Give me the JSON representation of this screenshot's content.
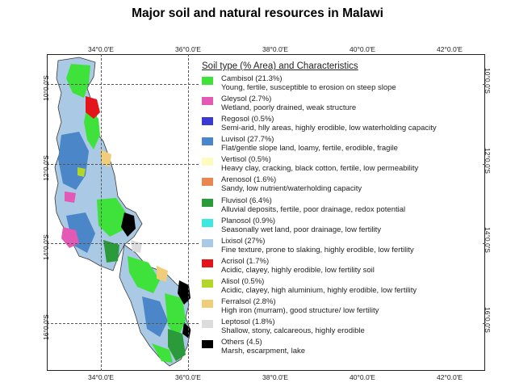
{
  "title": "Major soil and natural resources in Malawi",
  "coords": {
    "longitudes": [
      "34°0.0'E",
      "36°0.0'E",
      "38°0.0'E",
      "40°0.0'E",
      "42°0.0'E"
    ],
    "latitudes": [
      "10°0.0'S",
      "12°0.0'S",
      "14°0.0'S",
      "16°0.0'S"
    ]
  },
  "legend": {
    "title": "Soil type  (% Area) and Characteristics",
    "items": [
      {
        "name": "Cambisol (21.3%)",
        "desc": "Young, fertile, susceptible to erosion on steep slope",
        "color": "#3ee23a"
      },
      {
        "name": "Gleysol (2.7%)",
        "desc": "Wetland, poorly drained, weak structure",
        "color": "#e25ab5"
      },
      {
        "name": "Regosol (0.5%)",
        "desc": "Semi-arid, hlly areas, highly erodible, low waterholding capacity",
        "color": "#3a3ad2"
      },
      {
        "name": "Luvisol (27.7%)",
        "desc": "Flat/gentle slope land, loamy, fertile, erodible, fragile",
        "color": "#4a86c8"
      },
      {
        "name": "Vertisol (0.5%)",
        "desc": "Heavy clay, cracking, black cotton, fertile, low permeability",
        "color": "#fdfcc0"
      },
      {
        "name": "Arenosol (1.6%)",
        "desc": "Sandy, low nutrient/waterholding capacity",
        "color": "#e88850"
      },
      {
        "name": "Fluvisol (6.4%)",
        "desc": "Alluvial deposits, fertile, poor drainage, redox potential",
        "color": "#2b9a3a"
      },
      {
        "name": "Planosol (0.9%)",
        "desc": "Seasonally wet land, poor drainage, low fertility",
        "color": "#3de8e0"
      },
      {
        "name": "Lixisol (27%)",
        "desc": "Fine texture, prone to slaking, highly erodible, low fertility",
        "color": "#a9c9e4"
      },
      {
        "name": "Acrisol (1.7%)",
        "desc": "Acidic, clayey, highly erodible, low fertility soil",
        "color": "#e3141c"
      },
      {
        "name": "Alisol (0.5%)",
        "desc": "Acidic, clayey, high aluminium, highly erodible, low fertility",
        "color": "#b2d62a"
      },
      {
        "name": "Ferralsol (2.8%)",
        "desc": "High iron (murram), good structure/ low fertility",
        "color": "#f0cd7a"
      },
      {
        "name": "Leptosol (1.8%)",
        "desc": "Shallow, stony, calcareous, highly erodible",
        "color": "#dcdcdc"
      },
      {
        "name": "Others (4.5)",
        "desc": "Marsh, escarpment, lake",
        "color": "#000000"
      }
    ]
  }
}
